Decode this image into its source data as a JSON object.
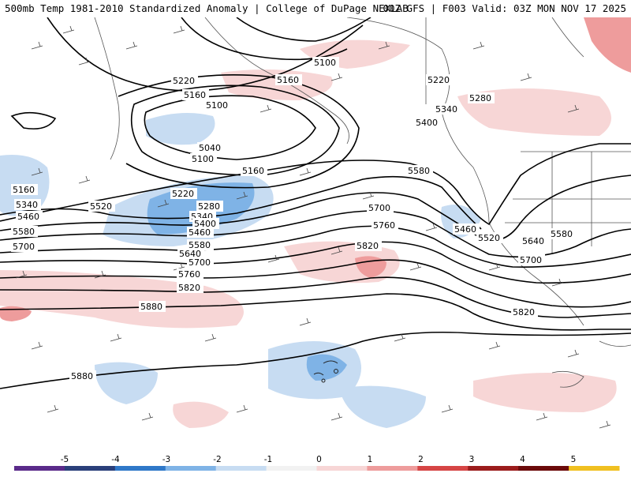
{
  "header": {
    "title_left": "500mb Temp 1981-2010 Standardized Anomaly | College of DuPage NEXLAB",
    "title_right": "00Z GFS | F003 Valid: 03Z MON NOV 17 2025"
  },
  "map": {
    "contour_labels": [
      "5100",
      "5160",
      "5220",
      "5160",
      "5100",
      "5220",
      "5280",
      "5340",
      "5400",
      "5040",
      "5100",
      "5160",
      "5220",
      "5280",
      "5340",
      "5400",
      "5460",
      "5580",
      "5700",
      "5760",
      "5820",
      "5880",
      "5580",
      "5640",
      "5700",
      "5760",
      "5820",
      "5880",
      "5160",
      "5340",
      "5460",
      "5520",
      "5580",
      "5700",
      "5460",
      "5520",
      "5640",
      "5580",
      "5700",
      "5820"
    ]
  },
  "colorbar": {
    "ticks": [
      "-5",
      "-4",
      "-3",
      "-2",
      "-1",
      "0",
      "1",
      "2",
      "3",
      "4",
      "5"
    ],
    "colors": [
      "#5a2a8a",
      "#2a3f7a",
      "#2f78c8",
      "#7fb3e6",
      "#c7dcf2",
      "#f2f2f2",
      "#f7d6d6",
      "#ee9c9c",
      "#d64545",
      "#9b1c1c",
      "#6b0a0a",
      "#f0c020"
    ]
  }
}
